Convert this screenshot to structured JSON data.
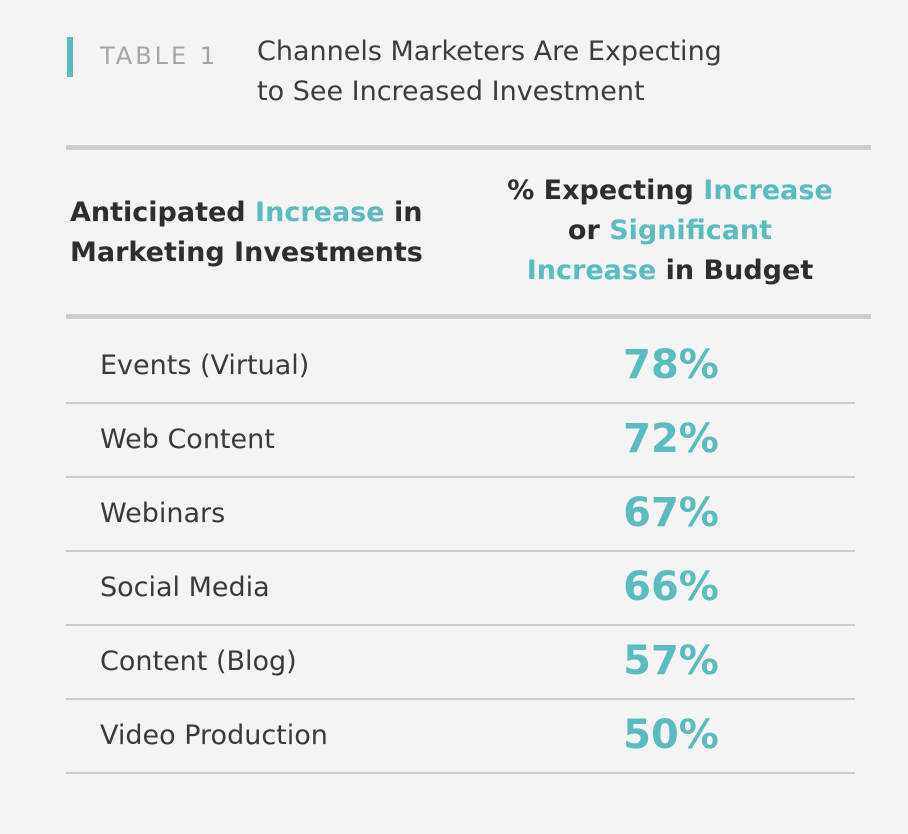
{
  "header": {
    "table_label": "TABLE 1",
    "title_line1": "Channels Marketers Are Expecting",
    "title_line2": "to See Increased Investment"
  },
  "colors": {
    "accent": "#5bbcbf",
    "text": "#3a3a3a",
    "rule": "#cfcfcf",
    "background": "#f4f4f4"
  },
  "columns": {
    "left": {
      "part1": "Anticipated ",
      "highlight1": "Increase",
      "part2": " in",
      "line2": "Marketing Investments"
    },
    "right": {
      "part1": "% Expecting ",
      "highlight1": "Increase",
      "part2": "or ",
      "highlight2": "Significant",
      "highlight3": "Increase",
      "part3": " in Budget"
    }
  },
  "chart_data": {
    "type": "table",
    "title": "Channels Marketers Are Expecting to See Increased Investment",
    "columns": [
      "Anticipated Increase in Marketing Investments",
      "% Expecting Increase or Significant Increase in Budget"
    ],
    "rows": [
      {
        "label": "Events (Virtual)",
        "value": 78,
        "display": "78%"
      },
      {
        "label": "Web Content",
        "value": 72,
        "display": "72%"
      },
      {
        "label": "Webinars",
        "value": 67,
        "display": "67%"
      },
      {
        "label": "Social Media",
        "value": 66,
        "display": "66%"
      },
      {
        "label": "Content (Blog)",
        "value": 57,
        "display": "57%"
      },
      {
        "label": "Video Production",
        "value": 50,
        "display": "50%"
      }
    ]
  }
}
